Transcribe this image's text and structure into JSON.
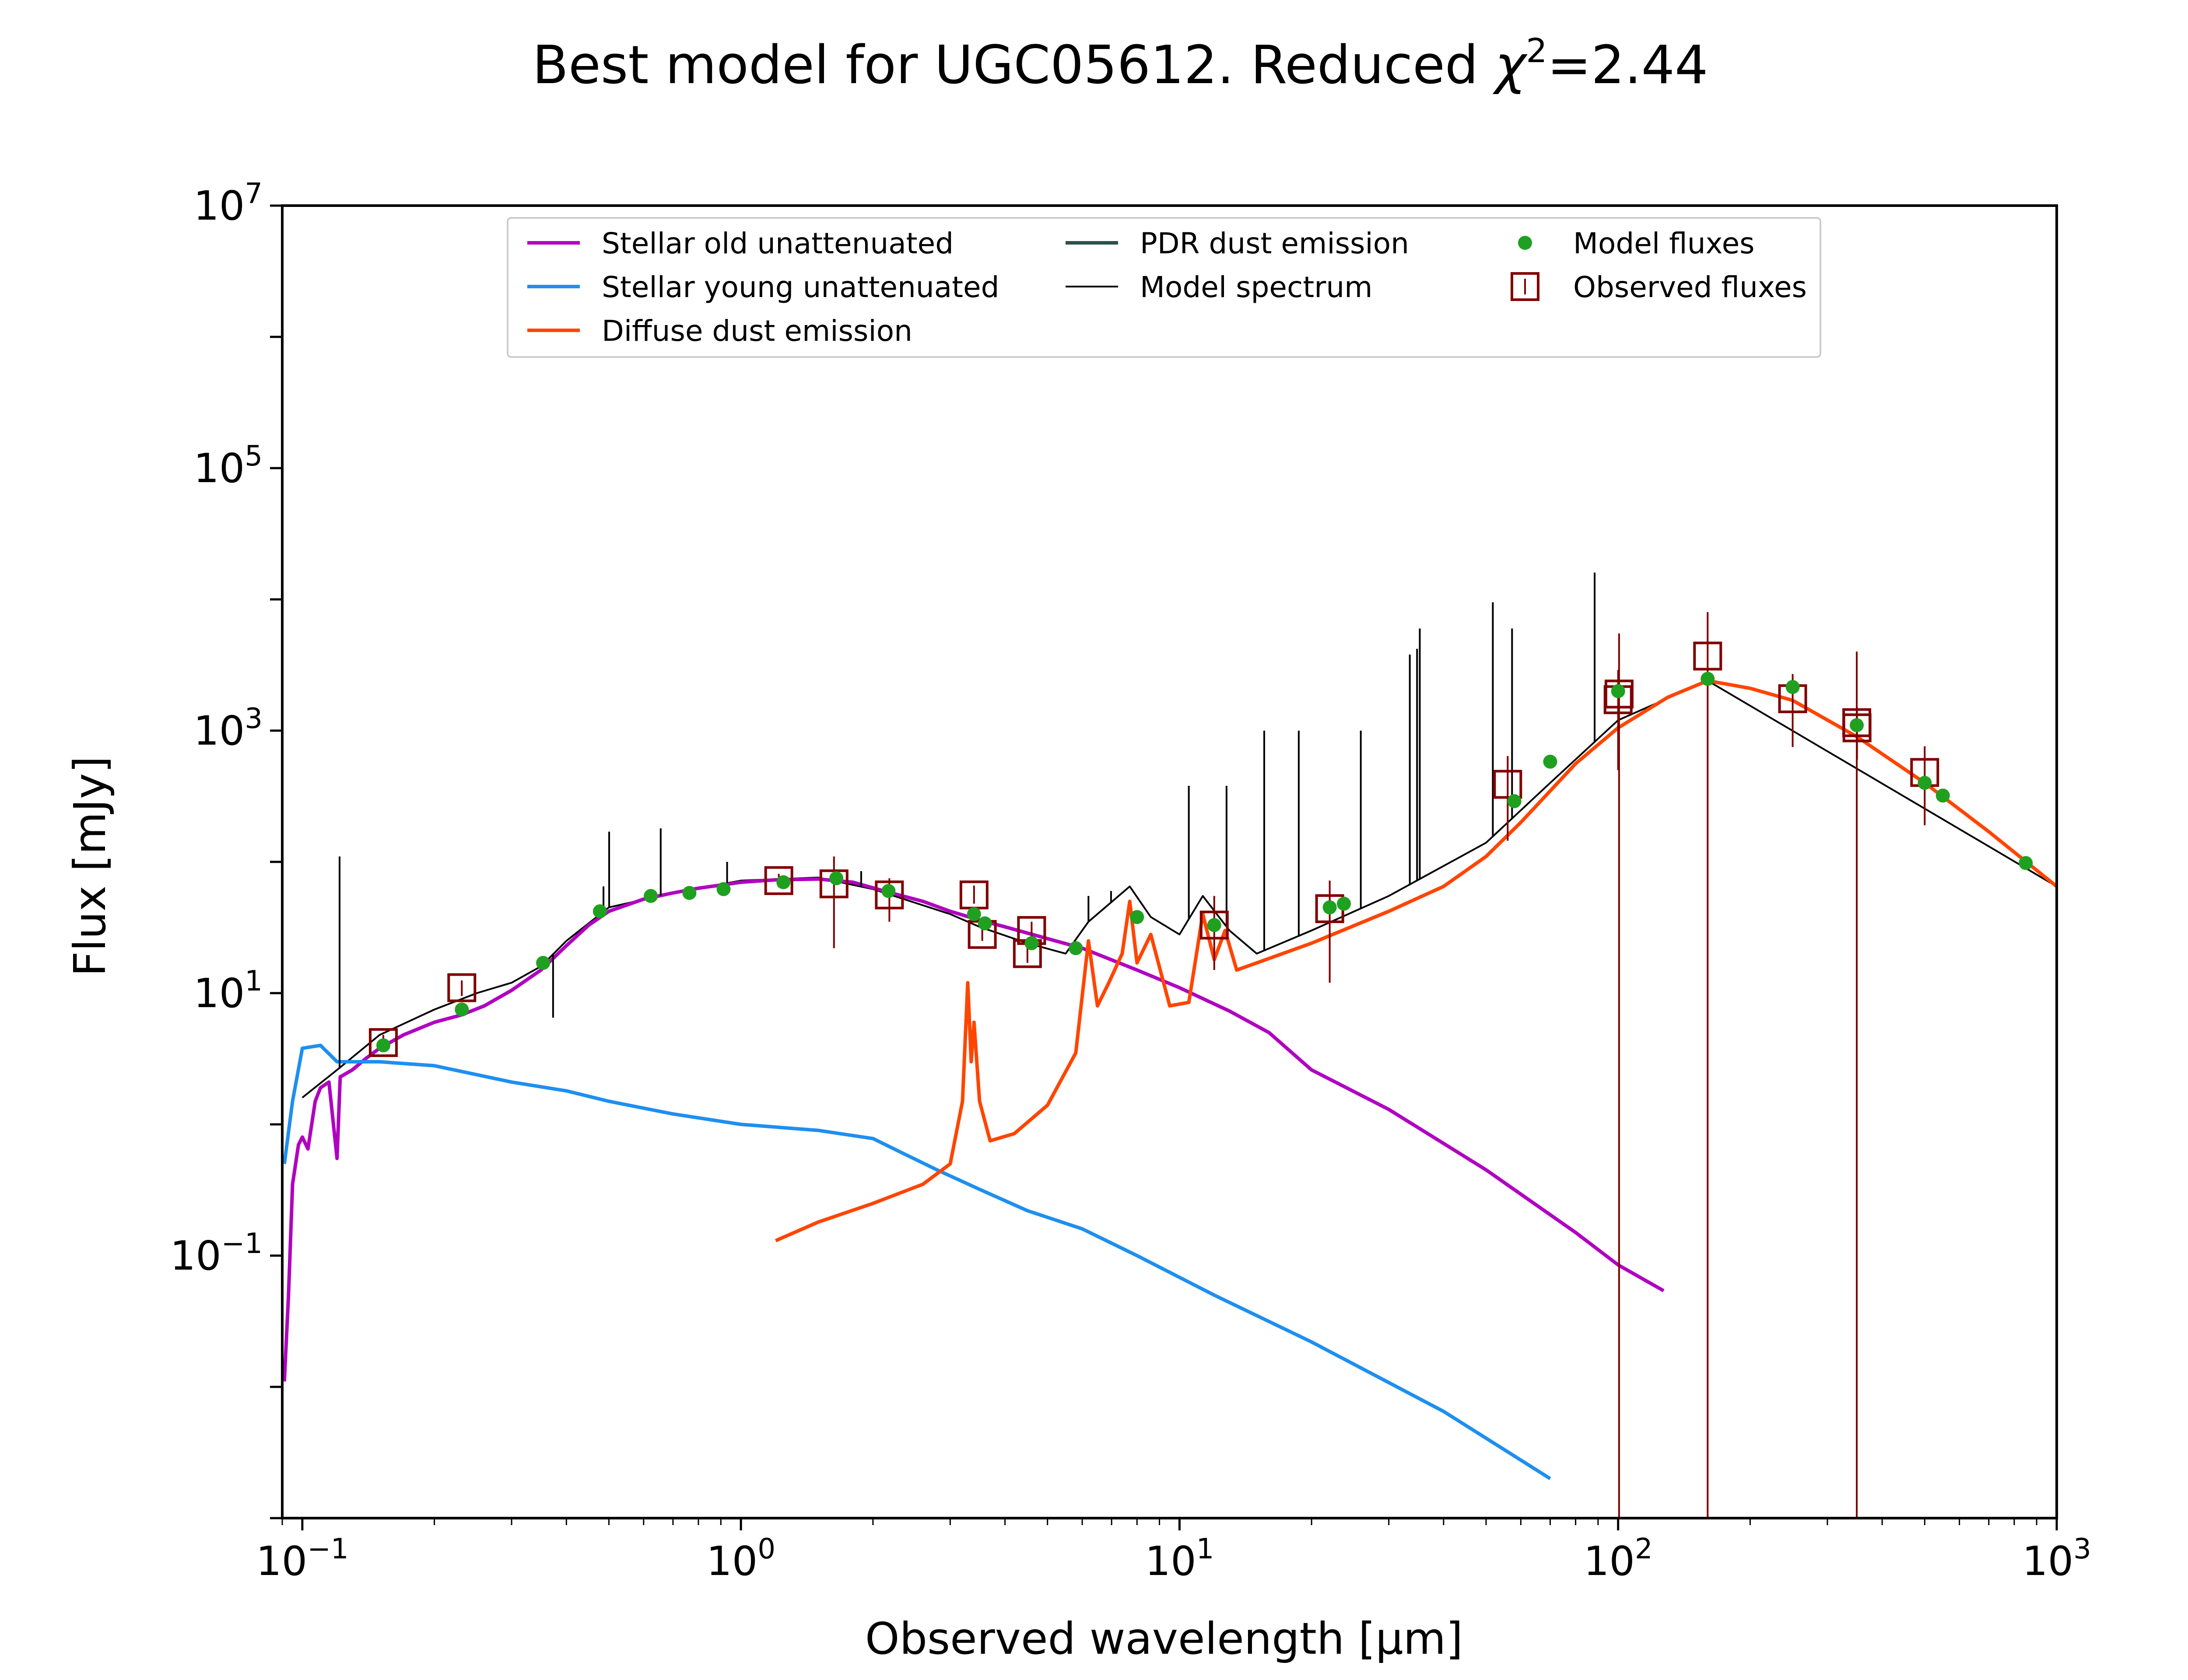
{
  "chart_data": {
    "type": "line",
    "title": "Best model for UGC05612. Reduced χ²=2.44",
    "title_parts": {
      "main": "Best model for UGC05612. Reduced ",
      "chi": "χ",
      "sup": "2",
      "value": "=2.44"
    },
    "xlabel": "Observed wavelength [μm]",
    "ylabel": "Flux [mJy]",
    "x_scale": "log",
    "y_scale": "log",
    "xlim": [
      0.09,
      1000
    ],
    "ylim": [
      0.001,
      10000000
    ],
    "x_ticks": [
      {
        "base": "10",
        "exp": "−1",
        "value": 0.1
      },
      {
        "base": "10",
        "exp": "0",
        "value": 1
      },
      {
        "base": "10",
        "exp": "1",
        "value": 10
      },
      {
        "base": "10",
        "exp": "2",
        "value": 100
      },
      {
        "base": "10",
        "exp": "3",
        "value": 1000
      }
    ],
    "y_ticks": [
      {
        "base": "10",
        "exp": "−1",
        "value": 0.1
      },
      {
        "base": "10",
        "exp": "1",
        "value": 10
      },
      {
        "base": "10",
        "exp": "3",
        "value": 1000
      },
      {
        "base": "10",
        "exp": "5",
        "value": 100000
      },
      {
        "base": "10",
        "exp": "7",
        "value": 10000000
      }
    ],
    "grid": false,
    "legend_position": "top",
    "legend": [
      {
        "label": "Stellar old unattenuated",
        "kind": "line",
        "color": "#b000c0"
      },
      {
        "label": "Stellar young unattenuated",
        "kind": "line",
        "color": "#1e8ff0"
      },
      {
        "label": "Diffuse dust emission",
        "kind": "line",
        "color": "#ff4500"
      },
      {
        "label": "PDR dust emission",
        "kind": "line",
        "color": "#2f4f4f"
      },
      {
        "label": "Model spectrum",
        "kind": "thinline",
        "color": "#000000"
      },
      {
        "label": "Model fluxes",
        "kind": "dot",
        "color": "#20a020"
      },
      {
        "label": "Observed fluxes",
        "kind": "square",
        "color": "#800000"
      }
    ],
    "series": [
      {
        "name": "Stellar old unattenuated",
        "color": "#b000c0",
        "points": [
          [
            0.091,
            0.011
          ],
          [
            0.093,
            0.05
          ],
          [
            0.095,
            0.35
          ],
          [
            0.098,
            0.7
          ],
          [
            0.1,
            0.8
          ],
          [
            0.103,
            0.65
          ],
          [
            0.107,
            1.5
          ],
          [
            0.11,
            1.9
          ],
          [
            0.115,
            2.1
          ],
          [
            0.12,
            0.55
          ],
          [
            0.122,
            2.3
          ],
          [
            0.13,
            2.6
          ],
          [
            0.14,
            3.2
          ],
          [
            0.15,
            3.8
          ],
          [
            0.17,
            4.8
          ],
          [
            0.2,
            6.0
          ],
          [
            0.23,
            6.8
          ],
          [
            0.26,
            8.0
          ],
          [
            0.3,
            10.5
          ],
          [
            0.35,
            15
          ],
          [
            0.4,
            23
          ],
          [
            0.45,
            33
          ],
          [
            0.5,
            42
          ],
          [
            0.6,
            52
          ],
          [
            0.7,
            58
          ],
          [
            0.8,
            63
          ],
          [
            1.0,
            70
          ],
          [
            1.2,
            73
          ],
          [
            1.5,
            74
          ],
          [
            1.8,
            70
          ],
          [
            2.2,
            58
          ],
          [
            2.6,
            50
          ],
          [
            3.0,
            42
          ],
          [
            3.5,
            36
          ],
          [
            4.0,
            32
          ],
          [
            5.0,
            26
          ],
          [
            6.0,
            22
          ],
          [
            8.0,
            15
          ],
          [
            10.0,
            11
          ],
          [
            13.0,
            7.3
          ],
          [
            16.0,
            5.0
          ],
          [
            20.0,
            2.6
          ],
          [
            30.0,
            1.3
          ],
          [
            50.0,
            0.45
          ],
          [
            80.0,
            0.15
          ],
          [
            100.0,
            0.085
          ],
          [
            127.0,
            0.054
          ]
        ]
      },
      {
        "name": "Stellar young unattenuated",
        "color": "#1e8ff0",
        "points": [
          [
            0.091,
            0.5
          ],
          [
            0.095,
            1.5
          ],
          [
            0.1,
            3.8
          ],
          [
            0.11,
            4.0
          ],
          [
            0.12,
            3.0
          ],
          [
            0.15,
            3.0
          ],
          [
            0.2,
            2.8
          ],
          [
            0.3,
            2.1
          ],
          [
            0.4,
            1.8
          ],
          [
            0.5,
            1.5
          ],
          [
            0.7,
            1.2
          ],
          [
            1.0,
            1.0
          ],
          [
            1.5,
            0.9
          ],
          [
            2.0,
            0.78
          ],
          [
            2.3,
            0.62
          ],
          [
            2.8,
            0.45
          ],
          [
            3.5,
            0.32
          ],
          [
            4.5,
            0.22
          ],
          [
            6.0,
            0.16
          ],
          [
            8.0,
            0.1
          ],
          [
            12.0,
            0.05
          ],
          [
            20.0,
            0.022
          ],
          [
            40.0,
            0.0065
          ],
          [
            70.0,
            0.002
          ]
        ]
      },
      {
        "name": "Diffuse dust emission",
        "color": "#ff4500",
        "points": [
          [
            1.2,
            0.13
          ],
          [
            1.5,
            0.18
          ],
          [
            2.0,
            0.25
          ],
          [
            2.6,
            0.35
          ],
          [
            3.0,
            0.5
          ],
          [
            3.2,
            1.5
          ],
          [
            3.29,
            12
          ],
          [
            3.35,
            3
          ],
          [
            3.4,
            6
          ],
          [
            3.5,
            1.5
          ],
          [
            3.7,
            0.75
          ],
          [
            4.2,
            0.85
          ],
          [
            5.0,
            1.4
          ],
          [
            5.8,
            3.5
          ],
          [
            6.2,
            25
          ],
          [
            6.5,
            8
          ],
          [
            6.9,
            12
          ],
          [
            7.4,
            20
          ],
          [
            7.7,
            50
          ],
          [
            8.0,
            17
          ],
          [
            8.6,
            28
          ],
          [
            9.5,
            8
          ],
          [
            10.5,
            8.5
          ],
          [
            11.3,
            40
          ],
          [
            12.0,
            18
          ],
          [
            12.7,
            30
          ],
          [
            13.5,
            15
          ],
          [
            15.0,
            17
          ],
          [
            20.0,
            24
          ],
          [
            30.0,
            42
          ],
          [
            40.0,
            65
          ],
          [
            50.0,
            110
          ],
          [
            60.0,
            200
          ],
          [
            80.0,
            560
          ],
          [
            100.0,
            1050
          ],
          [
            130.0,
            1800
          ],
          [
            160.0,
            2400
          ],
          [
            200.0,
            2100
          ],
          [
            250.0,
            1700
          ],
          [
            350.0,
            900
          ],
          [
            500.0,
            400
          ],
          [
            700.0,
            170
          ],
          [
            1000.0,
            65
          ]
        ]
      },
      {
        "name": "Model spectrum",
        "color": "#000000",
        "points": [
          [
            0.1,
            1.6
          ],
          [
            0.12,
            2.6
          ],
          [
            0.15,
            4.8
          ],
          [
            0.2,
            7.5
          ],
          [
            0.25,
            10
          ],
          [
            0.3,
            12
          ],
          [
            0.35,
            16
          ],
          [
            0.4,
            25
          ],
          [
            0.5,
            45
          ],
          [
            0.7,
            58
          ],
          [
            1.0,
            72
          ],
          [
            1.5,
            76
          ],
          [
            2.0,
            62
          ],
          [
            3.0,
            40
          ],
          [
            3.5,
            32
          ],
          [
            4.5,
            24
          ],
          [
            5.5,
            20
          ],
          [
            6.2,
            35
          ],
          [
            7.7,
            65
          ],
          [
            8.6,
            38
          ],
          [
            10.0,
            28
          ],
          [
            11.3,
            55
          ],
          [
            13.0,
            30
          ],
          [
            15.0,
            20
          ],
          [
            20.0,
            30
          ],
          [
            30.0,
            55
          ],
          [
            50.0,
            140
          ],
          [
            70.0,
            400
          ],
          [
            100.0,
            1200
          ],
          [
            160.0,
            2400
          ],
          [
            1000.0,
            65
          ]
        ]
      }
    ],
    "emission_lines": [
      [
        0.1216,
        110
      ],
      [
        0.373,
        6.5
      ],
      [
        0.486,
        65
      ],
      [
        0.5007,
        170
      ],
      [
        0.6563,
        180
      ],
      [
        0.93,
        100
      ],
      [
        1.28,
        75
      ],
      [
        1.88,
        85
      ],
      [
        6.2,
        55
      ],
      [
        6.98,
        60
      ],
      [
        10.5,
        380
      ],
      [
        12.8,
        380
      ],
      [
        15.6,
        1000
      ],
      [
        18.7,
        1000
      ],
      [
        25.9,
        1000
      ],
      [
        33.5,
        3800
      ],
      [
        34.8,
        4200
      ],
      [
        35.3,
        6000
      ],
      [
        51.8,
        9500
      ],
      [
        57.3,
        6000
      ],
      [
        88.4,
        16000
      ]
    ],
    "model_fluxes": [
      [
        0.153,
        4.0
      ],
      [
        0.231,
        7.5
      ],
      [
        0.354,
        17
      ],
      [
        0.477,
        42
      ],
      [
        0.623,
        55
      ],
      [
        0.763,
        58
      ],
      [
        0.913,
        62
      ],
      [
        1.25,
        70
      ],
      [
        1.65,
        75
      ],
      [
        2.17,
        60
      ],
      [
        3.4,
        40
      ],
      [
        3.6,
        34
      ],
      [
        4.6,
        24
      ],
      [
        5.8,
        22
      ],
      [
        8.0,
        38
      ],
      [
        12.0,
        33
      ],
      [
        22.0,
        45
      ],
      [
        23.7,
        48
      ],
      [
        58.0,
        290
      ],
      [
        70.0,
        580
      ],
      [
        100.0,
        2000
      ],
      [
        160.0,
        2480
      ],
      [
        250.0,
        2150
      ],
      [
        350.0,
        1100
      ],
      [
        500.0,
        400
      ],
      [
        550.0,
        320
      ],
      [
        850.0,
        98
      ]
    ],
    "observed_fluxes": [
      {
        "x": 0.153,
        "y": 4.2,
        "lo": 3.7,
        "hi": 4.8
      },
      {
        "x": 0.231,
        "y": 11.0,
        "lo": 9.5,
        "hi": 12.5
      },
      {
        "x": 1.22,
        "y": 72,
        "lo": 64,
        "hi": 81
      },
      {
        "x": 1.63,
        "y": 68,
        "lo": 22,
        "hi": 110
      },
      {
        "x": 2.18,
        "y": 56,
        "lo": 35,
        "hi": 75
      },
      {
        "x": 3.4,
        "y": 56,
        "lo": 48,
        "hi": 66
      },
      {
        "x": 3.55,
        "y": 28,
        "lo": 25,
        "hi": 32
      },
      {
        "x": 4.5,
        "y": 20,
        "lo": 17,
        "hi": 24
      },
      {
        "x": 4.6,
        "y": 30,
        "lo": 26,
        "hi": 35
      },
      {
        "x": 12.0,
        "y": 33,
        "lo": 15,
        "hi": 55
      },
      {
        "x": 22.0,
        "y": 44,
        "lo": 12,
        "hi": 72
      },
      {
        "x": 56.0,
        "y": 390,
        "lo": 145,
        "hi": 640
      },
      {
        "x": 100.0,
        "y": 1720,
        "lo": 500,
        "hi": 2900
      },
      {
        "x": 100.5,
        "y": 1900,
        "lo": 0.001,
        "hi": 5500
      },
      {
        "x": 160.0,
        "y": 3700,
        "lo": 0.001,
        "hi": 8000
      },
      {
        "x": 250.0,
        "y": 1750,
        "lo": 750,
        "hi": 2700
      },
      {
        "x": 350.0,
        "y": 1150,
        "lo": 0.001,
        "hi": 4000
      },
      {
        "x": 350.5,
        "y": 1050,
        "lo": 600,
        "hi": 1500
      },
      {
        "x": 500.0,
        "y": 480,
        "lo": 190,
        "hi": 760
      }
    ]
  }
}
